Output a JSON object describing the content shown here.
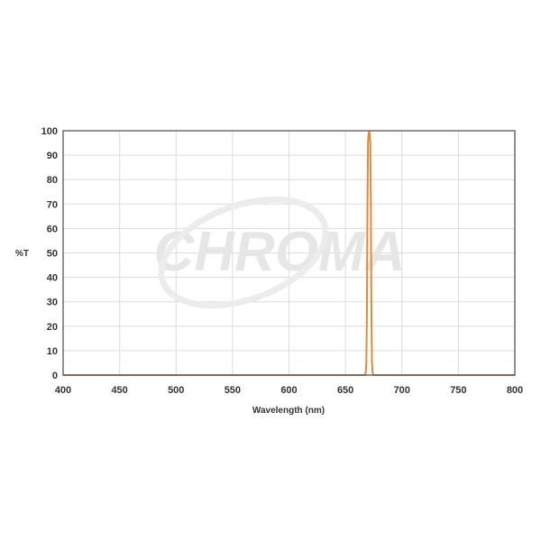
{
  "chart_data": {
    "type": "line",
    "title": "",
    "xlabel": "Wavelength (nm)",
    "ylabel": "%T",
    "xlim": [
      400,
      800
    ],
    "ylim": [
      0,
      100
    ],
    "xticks": [
      400,
      450,
      500,
      550,
      600,
      650,
      700,
      750,
      800
    ],
    "yticks": [
      0,
      10,
      20,
      30,
      40,
      50,
      60,
      70,
      80,
      90,
      100
    ],
    "grid": true,
    "series": [
      {
        "color": "#e08a3c",
        "x": [
          400,
          665,
          667,
          668,
          668.5,
          669,
          669.5,
          670,
          670.5,
          671,
          671.5,
          672,
          672.5,
          673,
          673.5,
          674,
          675,
          677,
          800
        ],
        "y": [
          0,
          0,
          0,
          1,
          5,
          25,
          70,
          95,
          99,
          99.5,
          99,
          95,
          70,
          25,
          5,
          1,
          0,
          0,
          0
        ]
      }
    ],
    "watermark": "CHROMA"
  },
  "colors": {
    "grid": "#dcdcdc",
    "axis": "#555555",
    "line": "#e08a3c"
  }
}
